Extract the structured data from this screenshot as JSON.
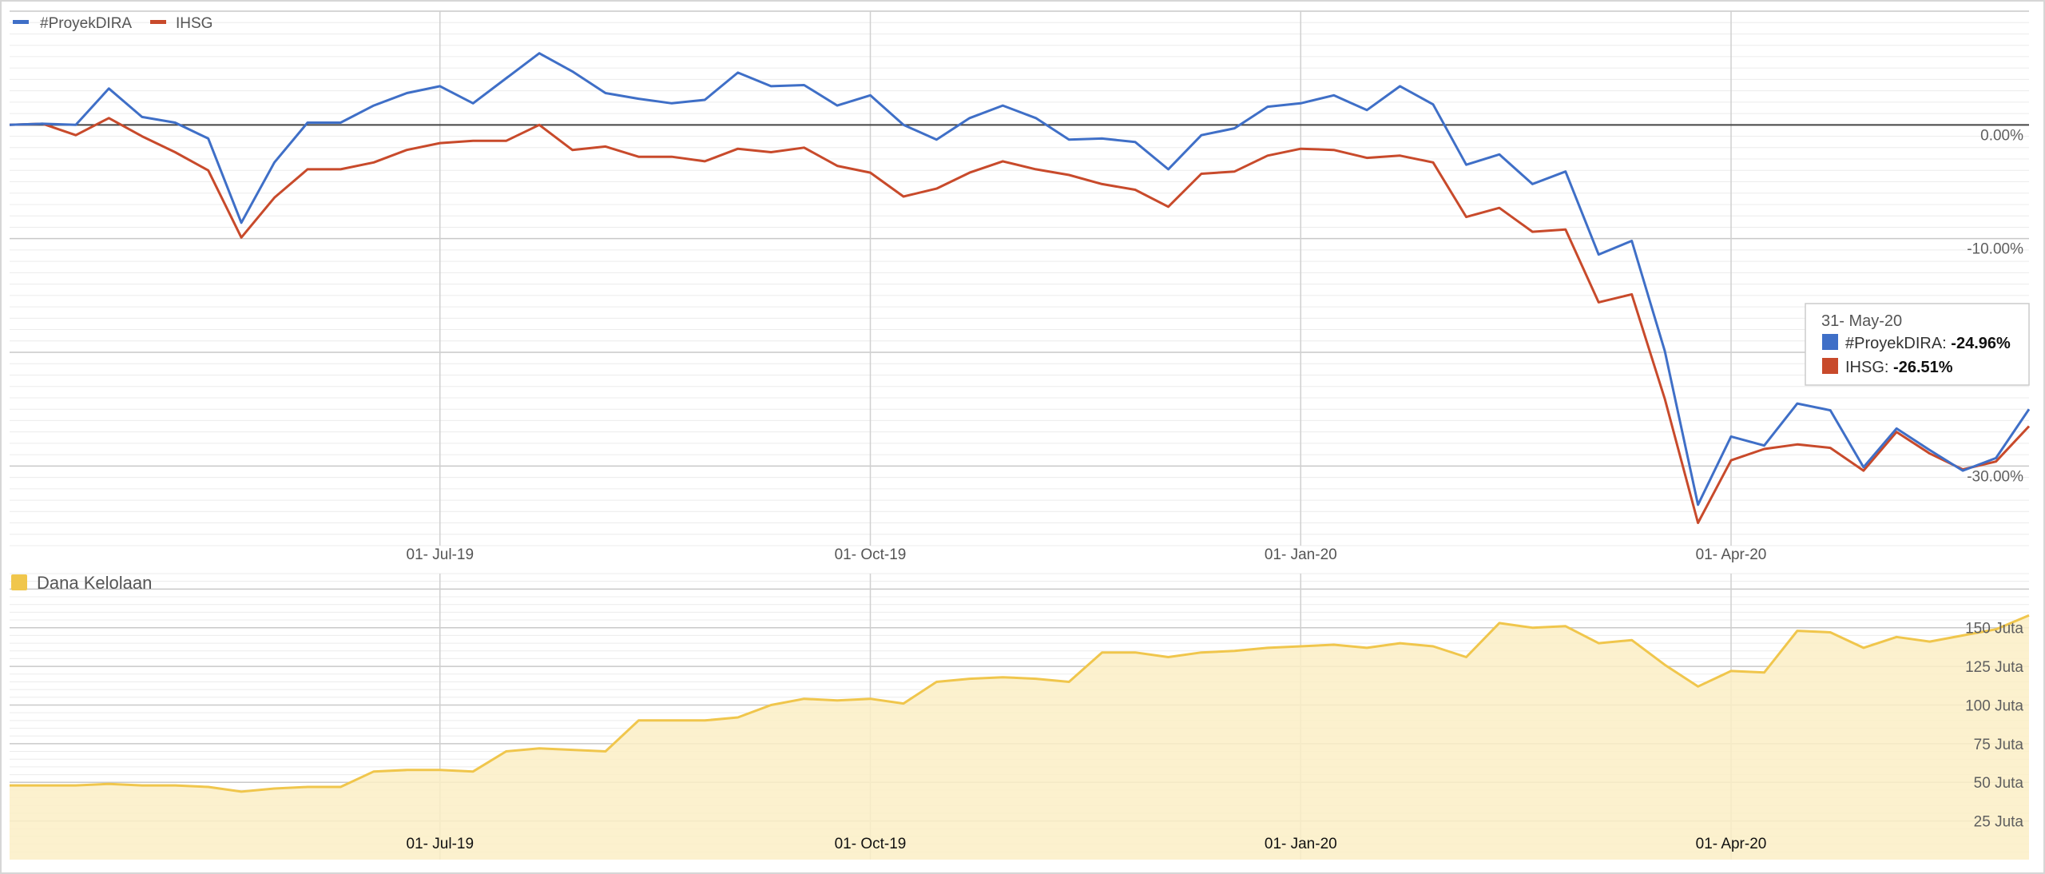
{
  "chart_data": [
    {
      "type": "line",
      "legend_position": "top-left",
      "grid": true,
      "y_unit": "%",
      "ylim": [
        -37,
        10
      ],
      "y_ticks": [
        {
          "value": 0,
          "label": "0.00%"
        },
        {
          "value": -10,
          "label": "-10.00%"
        },
        {
          "value": -30,
          "label": "-30.00%"
        }
      ],
      "x_ticks": [
        {
          "index": 13,
          "label": "01- Jul-19"
        },
        {
          "index": 26,
          "label": "01- Oct-19"
        },
        {
          "index": 39,
          "label": "01- Jan-20"
        },
        {
          "index": 52,
          "label": "01- Apr-20"
        }
      ],
      "series": [
        {
          "name": "#ProyekDIRA",
          "color": "#3f6fc7",
          "values": [
            0,
            0.1,
            0,
            3.2,
            0.7,
            0.2,
            -1.2,
            -8.6,
            -3.3,
            0.2,
            0.2,
            1.7,
            2.8,
            3.4,
            1.9,
            4.1,
            6.3,
            4.7,
            2.8,
            2.3,
            1.9,
            2.2,
            4.6,
            3.4,
            3.5,
            1.7,
            2.6,
            0,
            -1.3,
            0.6,
            1.7,
            0.6,
            -1.3,
            -1.2,
            -1.5,
            -3.9,
            -0.9,
            -0.3,
            1.6,
            1.9,
            2.6,
            1.3,
            3.4,
            1.8,
            -3.5,
            -2.6,
            -5.2,
            -4.1,
            -11.4,
            -10.2,
            -19.9,
            -33.4,
            -27.4,
            -28.2,
            -24.5,
            -25.1,
            -30.1,
            -26.7,
            -28.6,
            -30.4,
            -29.3,
            -25.0
          ]
        },
        {
          "name": "IHSG",
          "color": "#c84a2b",
          "values": [
            0,
            0.1,
            -0.9,
            0.6,
            -1.0,
            -2.4,
            -4.0,
            -9.9,
            -6.4,
            -3.9,
            -3.9,
            -3.3,
            -2.2,
            -1.6,
            -1.4,
            -1.4,
            0,
            -2.2,
            -1.9,
            -2.8,
            -2.8,
            -3.2,
            -2.1,
            -2.4,
            -2.0,
            -3.6,
            -4.2,
            -6.3,
            -5.6,
            -4.2,
            -3.2,
            -3.9,
            -4.4,
            -5.2,
            -5.7,
            -7.2,
            -4.3,
            -4.1,
            -2.7,
            -2.1,
            -2.2,
            -2.9,
            -2.7,
            -3.3,
            -8.1,
            -7.3,
            -9.4,
            -9.2,
            -15.6,
            -14.9,
            -24.1,
            -35.0,
            -29.5,
            -28.5,
            -28.1,
            -28.4,
            -30.4,
            -27.0,
            -28.9,
            -30.3,
            -29.6,
            -26.5
          ]
        }
      ]
    },
    {
      "type": "area",
      "legend_position": "top-left",
      "grid": true,
      "ylim": [
        0,
        185
      ],
      "y_ticks": [
        {
          "value": 25,
          "label": "25 Juta"
        },
        {
          "value": 50,
          "label": "50 Juta"
        },
        {
          "value": 75,
          "label": "75 Juta"
        },
        {
          "value": 100,
          "label": "100 Juta"
        },
        {
          "value": 125,
          "label": "125 Juta"
        },
        {
          "value": 150,
          "label": "150 Juta"
        }
      ],
      "x_ticks": [
        {
          "index": 13,
          "label": "01- Jul-19"
        },
        {
          "index": 26,
          "label": "01- Oct-19"
        },
        {
          "index": 39,
          "label": "01- Jan-20"
        },
        {
          "index": 52,
          "label": "01- Apr-20"
        }
      ],
      "series": [
        {
          "name": "Dana Kelolaan",
          "color": "#f0c64c",
          "fill": "#fbeec6",
          "values": [
            48,
            48,
            48,
            49,
            48,
            48,
            47,
            44,
            46,
            47,
            47,
            57,
            58,
            58,
            57,
            70,
            72,
            71,
            70,
            90,
            90,
            90,
            92,
            100,
            104,
            103,
            104,
            101,
            115,
            117,
            118,
            117,
            115,
            134,
            134,
            131,
            134,
            135,
            137,
            138,
            139,
            137,
            140,
            138,
            131,
            153,
            150,
            151,
            140,
            142,
            126,
            112,
            122,
            121,
            148,
            147,
            137,
            144,
            141,
            145,
            149,
            158
          ]
        }
      ]
    }
  ],
  "legend": {
    "top": [
      {
        "label": "#ProyekDIRA",
        "color": "#3f6fc7"
      },
      {
        "label": "IHSG",
        "color": "#c84a2b"
      }
    ],
    "bottom": [
      {
        "label": "Dana Kelolaan",
        "color": "#f0c64c"
      }
    ]
  },
  "tooltip": {
    "date": "31- May-20",
    "rows": [
      {
        "name": "#ProyekDIRA",
        "value": "-24.96%",
        "color": "#3f6fc7"
      },
      {
        "name": "IHSG",
        "value": "-26.51%",
        "color": "#c84a2b"
      }
    ]
  }
}
